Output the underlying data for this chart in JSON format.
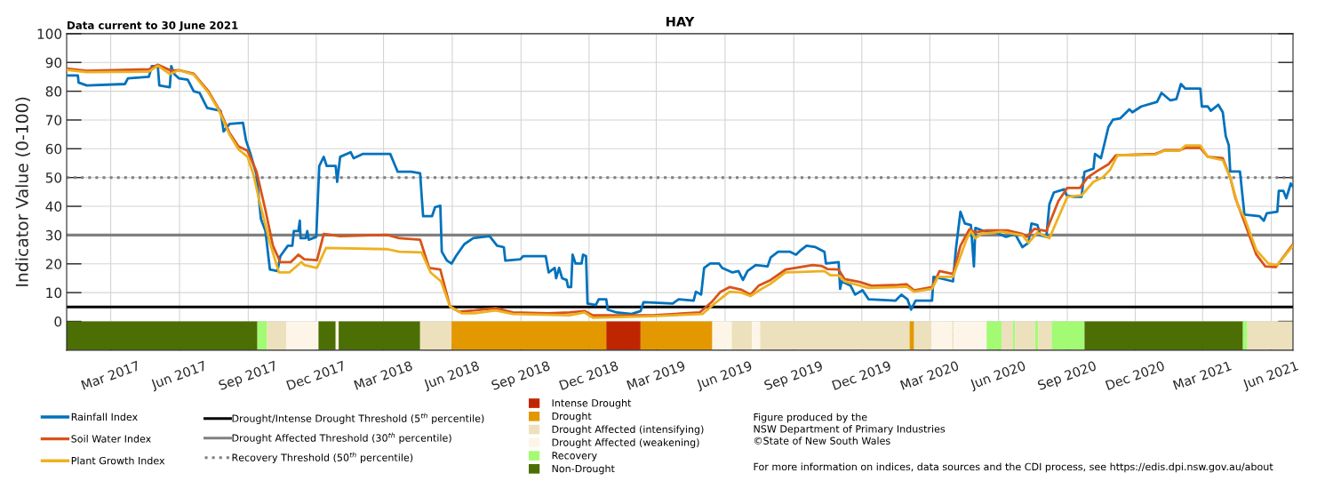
{
  "chart_data": {
    "type": "line",
    "title": "HAY",
    "ylabel": "Indicator Value (0-100)",
    "annotations": [
      "Data current to 30 June 2021",
      "Figure produced by the\nNSW Department of Primary Industries\n©State of New South Wales",
      "For more information on indices, data sources and the CDI process, see https://edis.dpi.nsw.gov.au/about"
    ],
    "xlim": [
      "2017-01-01",
      "2021-06-30"
    ],
    "xticks": [
      {
        "value": "2017-03-01",
        "label": "Mar 2017"
      },
      {
        "value": "2017-06-01",
        "label": "Jun 2017"
      },
      {
        "value": "2017-09-01",
        "label": "Sep 2017"
      },
      {
        "value": "2017-12-01",
        "label": "Dec 2017"
      },
      {
        "value": "2018-03-01",
        "label": "Mar 2018"
      },
      {
        "value": "2018-06-01",
        "label": "Jun 2018"
      },
      {
        "value": "2018-09-01",
        "label": "Sep 2018"
      },
      {
        "value": "2018-12-01",
        "label": "Dec 2018"
      },
      {
        "value": "2019-03-01",
        "label": "Mar 2019"
      },
      {
        "value": "2019-06-01",
        "label": "Jun 2019"
      },
      {
        "value": "2019-09-01",
        "label": "Sep 2019"
      },
      {
        "value": "2019-12-01",
        "label": "Dec 2019"
      },
      {
        "value": "2020-03-01",
        "label": "Mar 2020"
      },
      {
        "value": "2020-06-01",
        "label": "Jun 2020"
      },
      {
        "value": "2020-09-01",
        "label": "Sep 2020"
      },
      {
        "value": "2020-12-01",
        "label": "Dec 2020"
      },
      {
        "value": "2021-03-01",
        "label": "Mar 2021"
      },
      {
        "value": "2021-06-01",
        "label": "Jun 2021"
      }
    ],
    "ylim": [
      -10,
      100
    ],
    "yticks": [
      {
        "value": -5,
        "label": null
      },
      0,
      10,
      20,
      30,
      40,
      50,
      60,
      70,
      80,
      90,
      100
    ],
    "grid": true,
    "legend": "bottom",
    "line_style": "solid",
    "series": [
      {
        "name": "Rainfall Index",
        "color": "#0072bd",
        "x": [
          "2017-01-01",
          "2017-01-16",
          "2017-01-17",
          "2017-01-28",
          "2017-03-20",
          "2017-03-24",
          "2017-04-21",
          "2017-04-25",
          "2017-05-03",
          "2017-05-05",
          "2017-05-19",
          "2017-05-21",
          "2017-05-25",
          "2017-05-31",
          "2017-06-12",
          "2017-06-20",
          "2017-06-28",
          "2017-07-08",
          "2017-07-26",
          "2017-07-30",
          "2017-08-07",
          "2017-08-25",
          "2017-08-29",
          "2017-09-04",
          "2017-09-12",
          "2017-09-18",
          "2017-09-24",
          "2017-09-30",
          "2017-10-10",
          "2017-10-14",
          "2017-10-24",
          "2017-10-30",
          "2017-11-01",
          "2017-11-07",
          "2017-11-09",
          "2017-11-10",
          "2017-11-17",
          "2017-11-19",
          "2017-11-21",
          "2017-12-01",
          "2017-12-05",
          "2017-12-11",
          "2017-12-15",
          "2017-12-27",
          "2017-12-29",
          "2018-01-02",
          "2018-01-16",
          "2018-01-20",
          "2018-02-01",
          "2018-03-10",
          "2018-03-14",
          "2018-03-20",
          "2018-04-07",
          "2018-04-19",
          "2018-04-21",
          "2018-04-23",
          "2018-05-05",
          "2018-05-09",
          "2018-05-16",
          "2018-05-18",
          "2018-05-25",
          "2018-05-31",
          "2018-06-06",
          "2018-06-17",
          "2018-06-29",
          "2018-07-13",
          "2018-07-21",
          "2018-07-31",
          "2018-08-09",
          "2018-08-11",
          "2018-08-31",
          "2018-09-04",
          "2018-10-04",
          "2018-10-08",
          "2018-10-16",
          "2018-10-18",
          "2018-10-22",
          "2018-10-26",
          "2018-11-01",
          "2018-11-03",
          "2018-11-07",
          "2018-11-09",
          "2018-11-13",
          "2018-11-21",
          "2018-11-23",
          "2018-11-27",
          "2018-11-29",
          "2018-12-10",
          "2018-12-14",
          "2018-12-24",
          "2018-12-26",
          "2019-01-07",
          "2019-01-27",
          "2019-02-08",
          "2019-02-12",
          "2019-03-23",
          "2019-03-31",
          "2019-04-20",
          "2019-04-23",
          "2019-04-30",
          "2019-05-04",
          "2019-05-12",
          "2019-05-24",
          "2019-05-28",
          "2019-06-11",
          "2019-06-19",
          "2019-06-25",
          "2019-07-01",
          "2019-07-12",
          "2019-07-28",
          "2019-08-01",
          "2019-08-11",
          "2019-08-27",
          "2019-09-04",
          "2019-09-10",
          "2019-09-18",
          "2019-09-30",
          "2019-10-12",
          "2019-10-14",
          "2019-10-31",
          "2019-11-02",
          "2019-11-04",
          "2019-11-16",
          "2019-11-22",
          "2019-12-02",
          "2019-12-10",
          "2020-01-15",
          "2020-01-23",
          "2020-01-31",
          "2020-02-05",
          "2020-02-11",
          "2020-03-04",
          "2020-03-06",
          "2020-03-16",
          "2020-04-01",
          "2020-04-05",
          "2020-04-11",
          "2020-04-17",
          "2020-04-25",
          "2020-04-29",
          "2020-05-01",
          "2020-05-12",
          "2020-05-28",
          "2020-06-11",
          "2020-06-23",
          "2020-07-03",
          "2020-07-11",
          "2020-07-15",
          "2020-07-23",
          "2020-07-27",
          "2020-08-04",
          "2020-08-08",
          "2020-08-14",
          "2020-08-28",
          "2020-08-31",
          "2020-09-10",
          "2020-09-20",
          "2020-09-24",
          "2020-10-06",
          "2020-10-08",
          "2020-10-16",
          "2020-10-26",
          "2020-11-01",
          "2020-11-11",
          "2020-11-23",
          "2020-11-27",
          "2020-12-09",
          "2020-12-30",
          "2021-01-05",
          "2021-01-17",
          "2021-01-25",
          "2021-01-31",
          "2021-02-06",
          "2021-02-26",
          "2021-02-28",
          "2021-03-08",
          "2021-03-12",
          "2021-03-22",
          "2021-03-28",
          "2021-04-01",
          "2021-04-05",
          "2021-04-07",
          "2021-04-20",
          "2021-04-26",
          "2021-05-16",
          "2021-05-22",
          "2021-05-26",
          "2021-06-09",
          "2021-06-11",
          "2021-06-17",
          "2021-06-21",
          "2021-06-27",
          "2021-06-30"
        ],
        "values": [
          85.5,
          85.5,
          83.0,
          82.0,
          82.5,
          84.5,
          85.0,
          88.7,
          88.7,
          82.0,
          81.4,
          88.7,
          86.0,
          84.5,
          84.0,
          80.0,
          79.4,
          74.2,
          73.2,
          66.0,
          68.6,
          69.0,
          62.9,
          58.2,
          51.0,
          35.6,
          31.4,
          18.0,
          17.5,
          22.7,
          26.3,
          26.3,
          31.4,
          31.4,
          35.0,
          28.9,
          28.9,
          31.4,
          28.4,
          29.4,
          54.0,
          57.2,
          54.0,
          54.0,
          48.5,
          57.2,
          58.8,
          56.7,
          58.2,
          58.2,
          55.7,
          52.0,
          52.0,
          51.5,
          43.8,
          36.6,
          36.6,
          39.7,
          40.2,
          24.2,
          21.1,
          20.1,
          22.7,
          26.8,
          28.9,
          29.4,
          29.6,
          26.3,
          25.8,
          21.1,
          21.6,
          22.7,
          22.7,
          17.0,
          18.6,
          15.0,
          18.6,
          15.0,
          14.4,
          11.9,
          11.9,
          23.2,
          20.1,
          20.1,
          23.2,
          22.7,
          6.2,
          5.7,
          7.7,
          7.7,
          4.1,
          3.1,
          2.6,
          3.6,
          6.7,
          6.2,
          7.7,
          7.2,
          10.3,
          9.3,
          18.6,
          20.1,
          20.1,
          18.6,
          17.0,
          17.5,
          14.4,
          17.5,
          19.6,
          19.1,
          22.2,
          24.2,
          24.2,
          23.2,
          24.7,
          26.3,
          25.8,
          24.2,
          20.1,
          20.6,
          11.3,
          13.9,
          12.4,
          9.3,
          10.8,
          7.7,
          7.2,
          9.3,
          7.7,
          4.1,
          7.2,
          7.2,
          15.5,
          14.9,
          13.9,
          25.3,
          38.1,
          34.0,
          33.5,
          19.1,
          32.5,
          31.4,
          30.9,
          29.4,
          30.4,
          25.8,
          27.3,
          34.0,
          33.5,
          29.9,
          29.4,
          40.7,
          44.8,
          45.9,
          43.8,
          43.3,
          43.3,
          52.0,
          53.1,
          58.2,
          56.7,
          67.5,
          70.1,
          70.6,
          73.7,
          72.7,
          74.7,
          76.3,
          79.4,
          76.8,
          77.3,
          82.5,
          80.9,
          80.9,
          74.7,
          74.7,
          73.2,
          75.3,
          72.7,
          64.4,
          61.3,
          52.1,
          52.1,
          37.1,
          36.6,
          35.0,
          37.6,
          38.1,
          45.4,
          45.4,
          42.8,
          47.9,
          46.9
        ]
      },
      {
        "name": "Soil Water Index",
        "color": "#d95319",
        "x": [
          "2017-01-01",
          "2017-01-28",
          "2017-04-21",
          "2017-05-03",
          "2017-05-21",
          "2017-05-31",
          "2017-06-20",
          "2017-07-10",
          "2017-07-26",
          "2017-08-07",
          "2017-08-19",
          "2017-08-31",
          "2017-09-12",
          "2017-09-24",
          "2017-10-04",
          "2017-10-14",
          "2017-10-28",
          "2017-11-07",
          "2017-11-15",
          "2017-12-02",
          "2017-12-11",
          "2018-01-02",
          "2018-03-06",
          "2018-03-22",
          "2018-04-19",
          "2018-05-01",
          "2018-05-16",
          "2018-05-29",
          "2018-06-10",
          "2018-07-01",
          "2018-07-29",
          "2018-08-21",
          "2018-10-08",
          "2018-11-05",
          "2018-11-25",
          "2018-12-06",
          "2019-02-24",
          "2019-04-28",
          "2019-05-14",
          "2019-05-26",
          "2019-06-07",
          "2019-06-23",
          "2019-07-05",
          "2019-07-16",
          "2019-08-01",
          "2019-08-21",
          "2019-09-10",
          "2019-09-26",
          "2019-10-08",
          "2019-10-16",
          "2019-10-31",
          "2019-11-08",
          "2019-11-28",
          "2019-12-14",
          "2020-01-19",
          "2020-01-30",
          "2020-02-09",
          "2020-03-04",
          "2020-03-14",
          "2020-04-01",
          "2020-04-11",
          "2020-04-23",
          "2020-05-01",
          "2020-05-16",
          "2020-06-13",
          "2020-07-03",
          "2020-07-09",
          "2020-07-19",
          "2020-08-04",
          "2020-08-20",
          "2020-09-01",
          "2020-09-18",
          "2020-09-28",
          "2020-10-10",
          "2020-10-26",
          "2020-11-05",
          "2020-12-28",
          "2021-01-09",
          "2021-01-29",
          "2021-02-06",
          "2021-02-26",
          "2021-03-08",
          "2021-03-28",
          "2021-04-07",
          "2021-04-14",
          "2021-04-26",
          "2021-05-12",
          "2021-05-24",
          "2021-06-07",
          "2021-06-30"
        ],
        "values": [
          87.9,
          87.1,
          87.6,
          89.2,
          87.1,
          87.3,
          86.1,
          79.9,
          72.7,
          65.5,
          60.8,
          59.3,
          52.1,
          38.7,
          26.3,
          20.6,
          20.6,
          23.2,
          21.6,
          21.3,
          30.4,
          29.6,
          30.1,
          28.9,
          28.4,
          18.6,
          18.0,
          5.2,
          3.4,
          3.8,
          4.6,
          3.1,
          2.8,
          3.1,
          3.6,
          2.1,
          2.1,
          3.1,
          6.7,
          10.3,
          11.9,
          11.0,
          9.3,
          12.4,
          14.4,
          18.0,
          18.9,
          19.6,
          19.3,
          18.2,
          18.0,
          14.7,
          13.7,
          12.4,
          12.7,
          12.9,
          10.8,
          11.9,
          17.5,
          16.5,
          26.3,
          32.0,
          30.9,
          31.6,
          31.6,
          30.4,
          29.4,
          32.2,
          31.4,
          41.8,
          46.4,
          46.4,
          50.0,
          52.1,
          54.6,
          57.7,
          58.2,
          59.5,
          59.5,
          60.3,
          60.3,
          57.2,
          56.7,
          50.0,
          42.8,
          34.5,
          23.2,
          19.1,
          18.9,
          26.8
        ]
      },
      {
        "name": "Plant Growth Index",
        "color": "#edb120",
        "x": [
          "2017-01-01",
          "2017-01-28",
          "2017-04-21",
          "2017-05-03",
          "2017-05-19",
          "2017-05-31",
          "2017-06-20",
          "2017-07-10",
          "2017-07-24",
          "2017-08-07",
          "2017-08-19",
          "2017-08-31",
          "2017-09-08",
          "2017-09-16",
          "2017-09-30",
          "2017-10-12",
          "2017-10-26",
          "2017-11-11",
          "2017-11-15",
          "2017-12-02",
          "2017-12-14",
          "2018-03-06",
          "2018-03-22",
          "2018-04-21",
          "2018-05-03",
          "2018-05-17",
          "2018-05-29",
          "2018-06-14",
          "2018-07-01",
          "2018-07-29",
          "2018-08-21",
          "2018-11-05",
          "2018-11-25",
          "2018-12-06",
          "2019-02-24",
          "2019-05-02",
          "2019-05-18",
          "2019-06-07",
          "2019-06-23",
          "2019-07-05",
          "2019-07-20",
          "2019-08-01",
          "2019-08-21",
          "2019-09-10",
          "2019-10-12",
          "2019-10-20",
          "2019-10-31",
          "2019-11-08",
          "2019-12-10",
          "2020-01-19",
          "2020-01-30",
          "2020-02-09",
          "2020-03-04",
          "2020-03-12",
          "2020-04-01",
          "2020-04-19",
          "2020-04-25",
          "2020-05-01",
          "2020-05-09",
          "2020-06-05",
          "2020-07-03",
          "2020-07-11",
          "2020-07-23",
          "2020-08-08",
          "2020-09-01",
          "2020-09-20",
          "2020-10-06",
          "2020-10-18",
          "2020-10-28",
          "2020-11-07",
          "2020-12-28",
          "2021-01-09",
          "2021-01-29",
          "2021-02-06",
          "2021-02-26",
          "2021-03-08",
          "2021-03-28",
          "2021-04-07",
          "2021-04-18",
          "2021-04-26",
          "2021-05-12",
          "2021-05-28",
          "2021-06-09",
          "2021-06-30"
        ],
        "values": [
          87.4,
          86.6,
          86.8,
          88.9,
          86.0,
          87.3,
          85.8,
          79.4,
          73.2,
          64.9,
          59.8,
          57.2,
          51.0,
          41.8,
          27.3,
          17.0,
          17.0,
          20.6,
          19.6,
          18.6,
          25.5,
          25.1,
          24.2,
          24.0,
          17.0,
          13.9,
          5.2,
          2.8,
          2.8,
          3.8,
          2.6,
          2.1,
          3.1,
          1.3,
          1.8,
          2.6,
          6.2,
          10.3,
          10.0,
          8.8,
          11.3,
          13.1,
          17.0,
          17.2,
          17.5,
          16.0,
          16.0,
          13.9,
          11.6,
          11.9,
          12.1,
          10.3,
          11.3,
          15.5,
          15.5,
          28.4,
          31.4,
          28.9,
          30.4,
          31.2,
          29.9,
          27.3,
          30.9,
          28.9,
          43.3,
          43.8,
          48.5,
          50.0,
          52.6,
          57.7,
          58.0,
          59.3,
          59.3,
          61.1,
          61.1,
          57.2,
          56.0,
          50.0,
          39.7,
          36.1,
          24.7,
          20.1,
          19.6,
          26.3
        ]
      }
    ],
    "ref_lines": [
      {
        "axis": "y",
        "value": 5,
        "label": "Drought/Intense Drought Threshold (5$^{th}$ percentile)",
        "color": "#000000",
        "line_style": "solid"
      },
      {
        "axis": "y",
        "value": 30,
        "label": "Drought Affected Threshold (30$^{th}$ percentile)",
        "color": "#808080",
        "line_style": "solid"
      },
      {
        "axis": "y",
        "value": 50,
        "label": "Recovery Threshold (50$^{th}$ percentile)",
        "color": "#808080",
        "line_style": "dotted"
      }
    ],
    "bands": [
      {
        "axis": "x",
        "from": "2018-12-24",
        "to": "2019-02-08",
        "label": "Intense Drought",
        "color": "#bf2600"
      },
      {
        "axis": "x",
        "from": "2018-05-31",
        "to": "2018-12-24",
        "label": "Drought",
        "color": "#e39800"
      },
      {
        "axis": "x",
        "from": "2017-09-26",
        "to": "2017-10-22",
        "label": "Drought Affected (intensifying)",
        "color": "#ede1bd"
      },
      {
        "axis": "x",
        "from": "2017-10-22",
        "to": "2017-12-04",
        "label": "Drought Affected (weakening)",
        "color": "#fdf5e8"
      },
      {
        "axis": "x",
        "from": "2017-09-13",
        "to": "2017-09-26",
        "label": "Recovery",
        "color": "#a3fb74"
      },
      {
        "axis": "x",
        "from": "2017-01-01",
        "to": "2017-09-13",
        "label": "Non-Drought",
        "color": "#4b6f04"
      },
      {
        "axis": "x",
        "from": "2017-12-04",
        "to": "2017-12-27",
        "color": "#4b6f04"
      },
      {
        "axis": "x",
        "from": "2017-12-27",
        "to": "2017-12-31",
        "color": "#fdf5e8"
      },
      {
        "axis": "x",
        "from": "2017-12-31",
        "to": "2018-04-19",
        "color": "#4b6f04"
      },
      {
        "axis": "x",
        "from": "2018-04-19",
        "to": "2018-05-31",
        "color": "#ede1bd"
      },
      {
        "axis": "x",
        "from": "2019-02-08",
        "to": "2019-05-15",
        "color": "#e39800"
      },
      {
        "axis": "x",
        "from": "2019-05-15",
        "to": "2019-06-10",
        "color": "#fdf5e8"
      },
      {
        "axis": "x",
        "from": "2019-06-10",
        "to": "2019-07-07",
        "color": "#ede1bd"
      },
      {
        "axis": "x",
        "from": "2019-07-07",
        "to": "2019-07-18",
        "color": "#fdf5e8"
      },
      {
        "axis": "x",
        "from": "2019-07-18",
        "to": "2020-02-03",
        "color": "#ede1bd"
      },
      {
        "axis": "x",
        "from": "2020-02-03",
        "to": "2020-02-09",
        "color": "#e39800"
      },
      {
        "axis": "x",
        "from": "2020-02-09",
        "to": "2020-03-03",
        "color": "#ede1bd"
      },
      {
        "axis": "x",
        "from": "2020-03-03",
        "to": "2020-03-31",
        "color": "#fdf5e8"
      },
      {
        "axis": "x",
        "from": "2020-03-31",
        "to": "2020-04-02",
        "color": "#ede1bd"
      },
      {
        "axis": "x",
        "from": "2020-04-02",
        "to": "2020-05-16",
        "color": "#fdf5e8"
      },
      {
        "axis": "x",
        "from": "2020-05-16",
        "to": "2020-06-05",
        "color": "#a3fb74"
      },
      {
        "axis": "x",
        "from": "2020-06-05",
        "to": "2020-06-20",
        "color": "#ede1bd"
      },
      {
        "axis": "x",
        "from": "2020-06-20",
        "to": "2020-06-23",
        "color": "#a3fb74"
      },
      {
        "axis": "x",
        "from": "2020-06-23",
        "to": "2020-07-20",
        "color": "#ede1bd"
      },
      {
        "axis": "x",
        "from": "2020-07-20",
        "to": "2020-07-24",
        "color": "#a3fb74"
      },
      {
        "axis": "x",
        "from": "2020-07-24",
        "to": "2020-08-11",
        "color": "#ede1bd"
      },
      {
        "axis": "x",
        "from": "2020-08-11",
        "to": "2020-09-24",
        "color": "#a3fb74"
      },
      {
        "axis": "x",
        "from": "2020-09-24",
        "to": "2021-04-24",
        "color": "#4b6f04"
      },
      {
        "axis": "x",
        "from": "2021-04-24",
        "to": "2021-04-30",
        "color": "#a3fb74"
      },
      {
        "axis": "x",
        "from": "2021-04-30",
        "to": "2021-06-30",
        "color": "#ede1bd"
      }
    ]
  }
}
